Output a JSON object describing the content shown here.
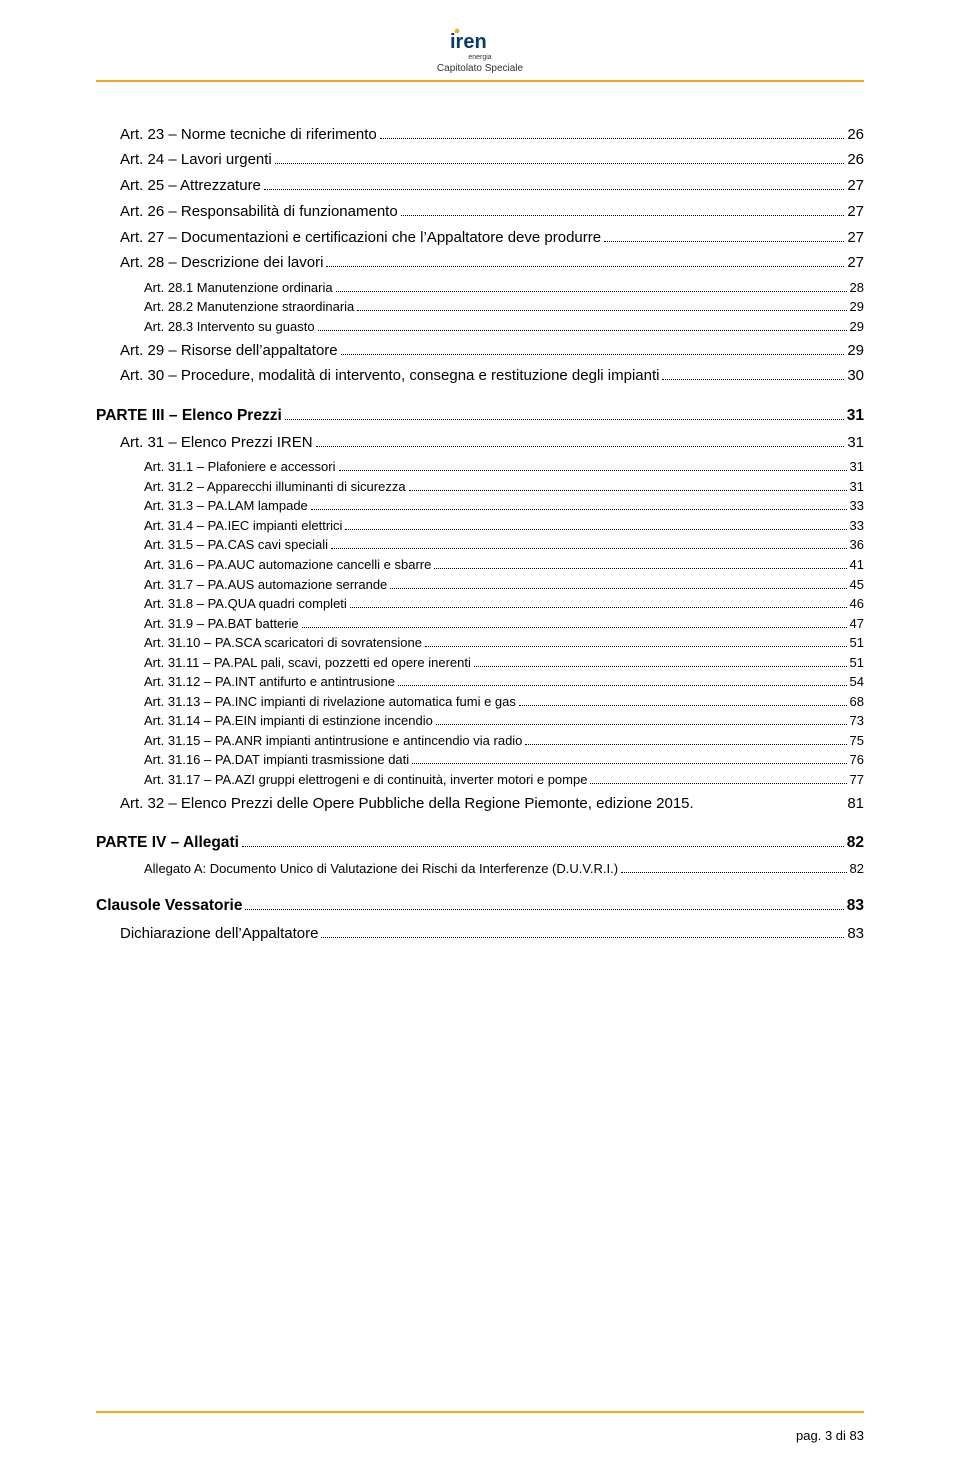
{
  "header": {
    "brand": "iren",
    "brand_sub": "energia",
    "title": "Capitolato Speciale",
    "accent_color": "#f5a623"
  },
  "toc": [
    {
      "level": 2,
      "label": "Art. 23 – Norme tecniche di riferimento",
      "page": "26"
    },
    {
      "level": 2,
      "label": "Art. 24 – Lavori urgenti",
      "page": "26"
    },
    {
      "level": 2,
      "label": "Art. 25 – Attrezzature",
      "page": "27"
    },
    {
      "level": 2,
      "label": "Art. 26 – Responsabilità di funzionamento",
      "page": "27"
    },
    {
      "level": 2,
      "label": "Art. 27 – Documentazioni e certificazioni che l’Appaltatore deve produrre",
      "page": "27"
    },
    {
      "level": 2,
      "label": "Art. 28 – Descrizione dei lavori",
      "page": "27"
    },
    {
      "level": 3,
      "label": "Art. 28.1 Manutenzione ordinaria",
      "page": "28"
    },
    {
      "level": 3,
      "label": "Art. 28.2 Manutenzione straordinaria",
      "page": "29"
    },
    {
      "level": 3,
      "label": "Art. 28.3 Intervento su guasto",
      "page": "29"
    },
    {
      "level": 2,
      "label": "Art. 29 – Risorse dell’appaltatore",
      "page": "29"
    },
    {
      "level": 2,
      "label": "Art. 30 – Procedure, modalità di intervento, consegna e restituzione degli impianti",
      "page": "30"
    },
    {
      "level": 1,
      "label": "PARTE III – Elenco Prezzi",
      "page": "31"
    },
    {
      "level": 2,
      "label": "Art. 31 – Elenco Prezzi IREN",
      "page": "31"
    },
    {
      "level": 3,
      "label": "Art. 31.1 – Plafoniere e accessori",
      "page": "31"
    },
    {
      "level": 3,
      "label": "Art. 31.2 – Apparecchi illuminanti  di sicurezza",
      "page": "31"
    },
    {
      "level": 3,
      "label": "Art. 31.3 – PA.LAM lampade",
      "page": "33"
    },
    {
      "level": 3,
      "label": "Art. 31.4 – PA.IEC impianti elettrici",
      "page": "33"
    },
    {
      "level": 3,
      "label": "Art. 31.5 – PA.CAS cavi speciali",
      "page": "36"
    },
    {
      "level": 3,
      "label": "Art. 31.6 – PA.AUC automazione cancelli e sbarre",
      "page": "41"
    },
    {
      "level": 3,
      "label": "Art. 31.7 – PA.AUS automazione serrande",
      "page": "45"
    },
    {
      "level": 3,
      "label": "Art. 31.8 – PA.QUA quadri completi",
      "page": "46"
    },
    {
      "level": 3,
      "label": "Art. 31.9 – PA.BAT batterie",
      "page": "47"
    },
    {
      "level": 3,
      "label": "Art. 31.10 – PA.SCA scaricatori di sovratensione",
      "page": "51"
    },
    {
      "level": 3,
      "label": "Art. 31.11 – PA.PAL pali, scavi, pozzetti ed opere inerenti",
      "page": "51"
    },
    {
      "level": 3,
      "label": "Art. 31.12 – PA.INT antifurto e antintrusione",
      "page": "54"
    },
    {
      "level": 3,
      "label": "Art. 31.13 – PA.INC impianti di rivelazione automatica fumi e gas",
      "page": "68"
    },
    {
      "level": 3,
      "label": "Art. 31.14 – PA.EIN impianti di estinzione incendio",
      "page": "73"
    },
    {
      "level": 3,
      "label": "Art. 31.15 – PA.ANR impianti antintrusione e antincendio via radio",
      "page": "75"
    },
    {
      "level": 3,
      "label": "Art. 31.16 – PA.DAT impianti trasmissione dati",
      "page": "76"
    },
    {
      "level": 3,
      "label": "Art. 31.17 – PA.AZI gruppi elettrogeni e di continuità, inverter motori e pompe",
      "page": "77"
    },
    {
      "level": 2,
      "label": "Art. 32 – Elenco Prezzi delle Opere Pubbliche della Regione Piemonte, edizione 2015.",
      "page": "81",
      "nodots": true
    },
    {
      "level": 1,
      "label": "PARTE IV – Allegati",
      "page": "82"
    },
    {
      "level": 3,
      "label": "Allegato A:  Documento Unico di Valutazione dei Rischi da Interferenze (D.U.V.R.I.)",
      "page": "82"
    },
    {
      "level": 1,
      "label": "Clausole Vessatorie",
      "page": "83"
    },
    {
      "level": 2,
      "label": "Dichiarazione dell’Appaltatore",
      "page": "83"
    }
  ],
  "footer": {
    "text": "pag. 3 di 83"
  }
}
